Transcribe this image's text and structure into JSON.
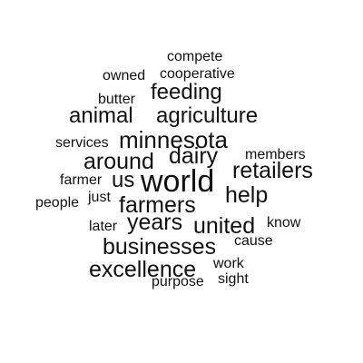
{
  "word_cloud": {
    "words": {
      "compete": "compete",
      "owned": "owned",
      "cooperative": "cooperative",
      "butter": "butter",
      "feeding": "feeding",
      "animal": "animal",
      "agriculture": "agriculture",
      "services": "services",
      "minnesota": "minnesota",
      "around": "around",
      "dairy": "dairy",
      "members": "members",
      "retailers": "retailers",
      "farmer": "farmer",
      "us": "us",
      "world": "world",
      "help": "help",
      "people": "people",
      "just": "just",
      "farmers": "farmers",
      "years": "years",
      "later": "later",
      "united": "united",
      "know": "know",
      "cause": "cause",
      "businesses": "businesses",
      "work": "work",
      "excellence": "excellence",
      "sight": "sight",
      "purpose": "purpose"
    },
    "text_color": "#111111",
    "background_color": "#ffffff"
  }
}
